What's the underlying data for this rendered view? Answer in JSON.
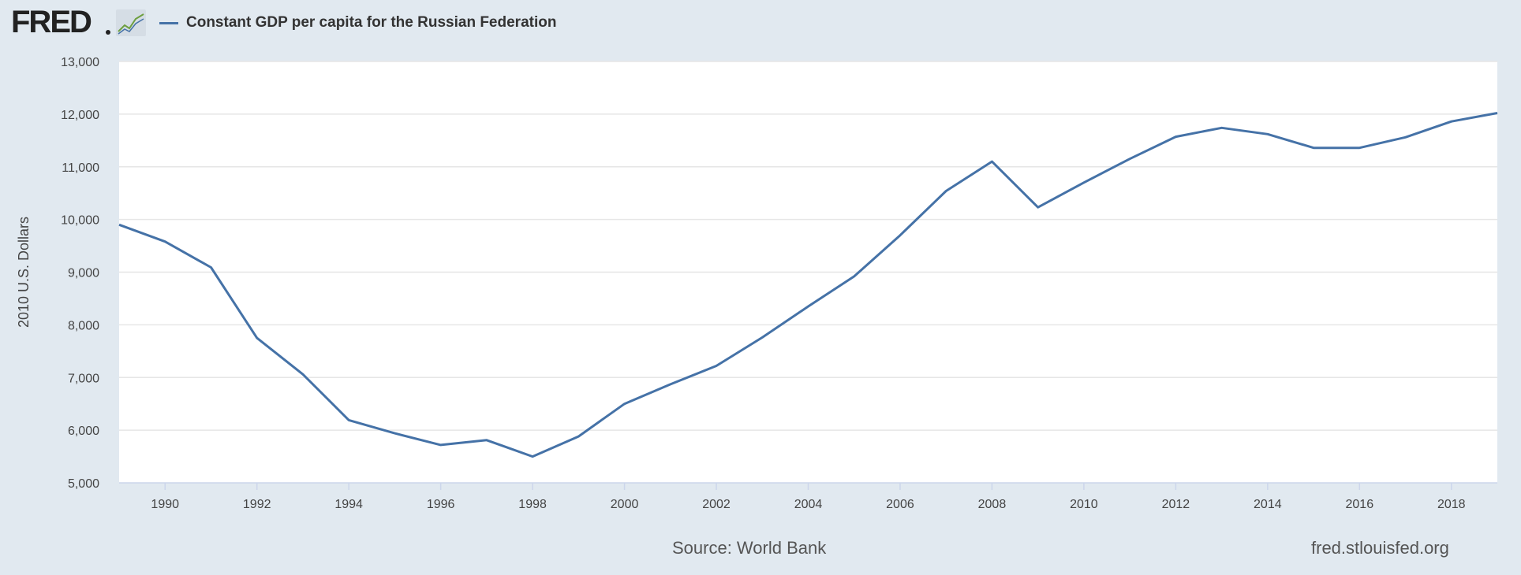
{
  "header": {
    "logo_text": "FRED",
    "legend_label": "Constant GDP per capita for the Russian Federation"
  },
  "footer": {
    "source": "Source: World Bank",
    "site": "fred.stlouisfed.org"
  },
  "colors": {
    "background": "#e1e9f0",
    "plot_background": "#ffffff",
    "series": "#4572a7",
    "grid": "#e6e6e6"
  },
  "chart_data": {
    "type": "line",
    "title": "Constant GDP per capita for the Russian Federation",
    "xlabel": "",
    "ylabel": "2010 U.S. Dollars",
    "xlim": [
      1989,
      2019
    ],
    "ylim": [
      5000,
      13000
    ],
    "grid": true,
    "legend": "top-left",
    "x_ticks": [
      1990,
      1992,
      1994,
      1996,
      1998,
      2000,
      2002,
      2004,
      2006,
      2008,
      2010,
      2012,
      2014,
      2016,
      2018
    ],
    "x_tick_labels": [
      "1990",
      "1992",
      "1994",
      "1996",
      "1998",
      "2000",
      "2002",
      "2004",
      "2006",
      "2008",
      "2010",
      "2012",
      "2014",
      "2016",
      "2018"
    ],
    "y_ticks": [
      5000,
      6000,
      7000,
      8000,
      9000,
      10000,
      11000,
      12000,
      13000
    ],
    "y_tick_labels": [
      "5,000",
      "6,000",
      "7,000",
      "8,000",
      "9,000",
      "10,000",
      "11,000",
      "12,000",
      "13,000"
    ],
    "series": [
      {
        "name": "Constant GDP per capita for the Russian Federation",
        "x": [
          1989,
          1990,
          1991,
          1992,
          1993,
          1994,
          1995,
          1996,
          1997,
          1998,
          1999,
          2000,
          2001,
          2002,
          2003,
          2004,
          2005,
          2006,
          2007,
          2008,
          2009,
          2010,
          2011,
          2012,
          2013,
          2014,
          2015,
          2016,
          2017,
          2018,
          2019
        ],
        "values": [
          9900,
          9580,
          9090,
          7750,
          7060,
          6190,
          5940,
          5720,
          5810,
          5500,
          5880,
          6500,
          6870,
          7220,
          7760,
          8350,
          8920,
          9700,
          10540,
          11100,
          10230,
          10700,
          11150,
          11570,
          11740,
          11620,
          11360,
          11360,
          11560,
          11860,
          12020
        ]
      }
    ]
  }
}
